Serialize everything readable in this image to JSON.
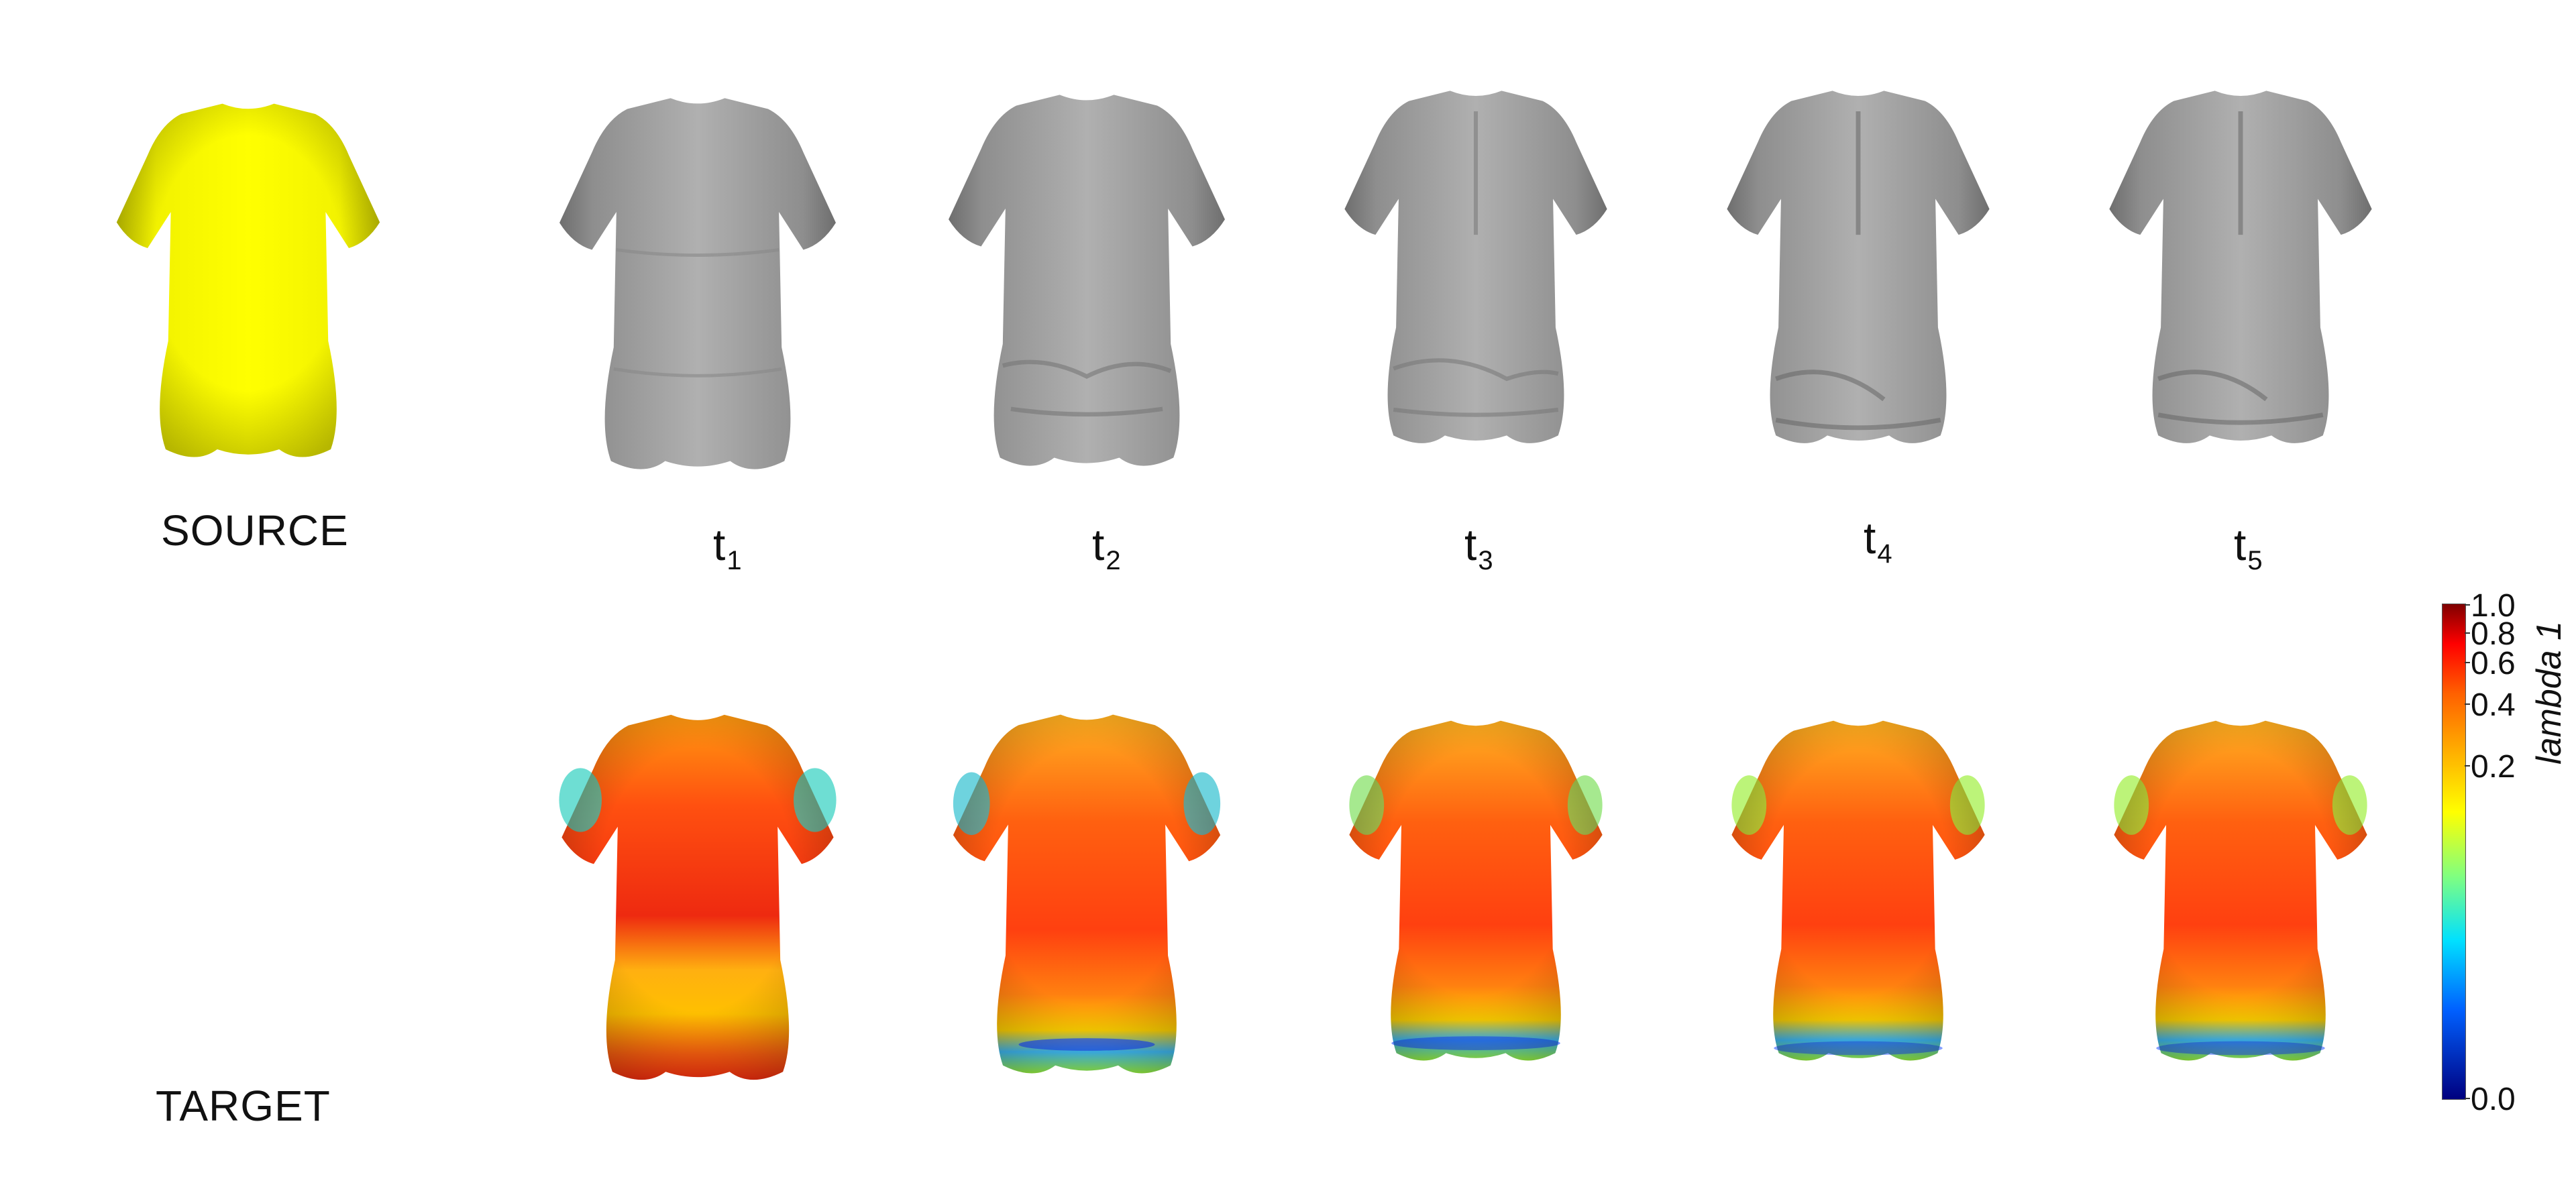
{
  "labels": {
    "source": "SOURCE",
    "target": "TARGET",
    "t1": "t",
    "t1_sub": "1",
    "t2": "t",
    "t2_sub": "2",
    "t3": "t",
    "t3_sub": "3",
    "t4": "t",
    "t4_sub": "4",
    "t5": "t",
    "t5_sub": "5"
  },
  "colorbar": {
    "title": "lambda 1",
    "ticks": [
      "1.0",
      "0.8",
      "0.6",
      "0.4",
      "0.2",
      "0.0"
    ],
    "tick_values": [
      1.0,
      0.8,
      0.6,
      0.4,
      0.2,
      0.0
    ],
    "scale": "log-like",
    "colormap": [
      "#7f0000",
      "#ff0000",
      "#ff8000",
      "#ffff00",
      "#80ff80",
      "#00c0ff",
      "#0000ff",
      "#00007f"
    ]
  },
  "colors": {
    "source": "#ffff00",
    "mesh_gray": "#a8a8a8",
    "heat_base": "#ff5a10"
  }
}
